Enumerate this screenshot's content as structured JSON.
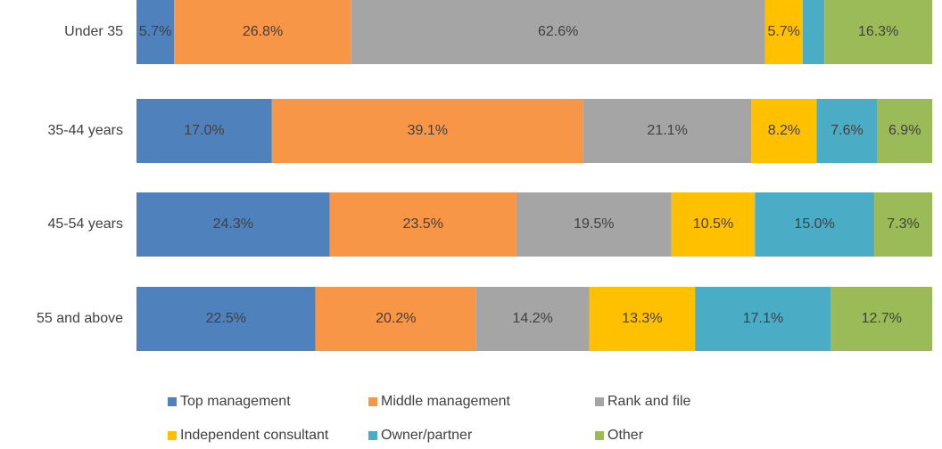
{
  "chart_data": {
    "type": "stacked_bar_percent",
    "categories": [
      "Under 35",
      "35-44 years",
      "45-54 years",
      "55 and above"
    ],
    "series": [
      {
        "name": "Top management",
        "color": "#4f81bd",
        "values": [
          5.7,
          17.0,
          24.3,
          22.5
        ],
        "value_labels": [
          "5.7%",
          "17.0%",
          "24.3%",
          "22.5%"
        ]
      },
      {
        "name": "Middle management",
        "color": "#f79646",
        "values": [
          26.8,
          39.1,
          23.5,
          20.2
        ],
        "value_labels": [
          "26.8%",
          "39.1%",
          "23.5%",
          "20.2%"
        ]
      },
      {
        "name": "Rank and file",
        "color": "#a5a5a5",
        "values": [
          62.6,
          21.1,
          19.5,
          14.2
        ],
        "value_labels": [
          "62.6%",
          "21.1%",
          "19.5%",
          "14.2%"
        ]
      },
      {
        "name": "Independent consultant",
        "color": "#ffc000",
        "values": [
          5.7,
          8.2,
          10.5,
          13.3
        ],
        "value_labels": [
          "5.7%",
          "8.2%",
          "10.5%",
          "13.3%"
        ]
      },
      {
        "name": "Owner/partner",
        "color": "#4bacc6",
        "values": [
          3.3,
          7.6,
          15.0,
          17.1
        ],
        "value_labels": [
          null,
          "7.6%",
          "15.0%",
          "17.1%"
        ]
      },
      {
        "name": "Other",
        "color": "#9bbb59",
        "values": [
          16.3,
          6.9,
          7.3,
          12.7
        ],
        "value_labels": [
          "16.3%",
          "6.9%",
          "7.3%",
          "12.7%"
        ]
      }
    ]
  }
}
